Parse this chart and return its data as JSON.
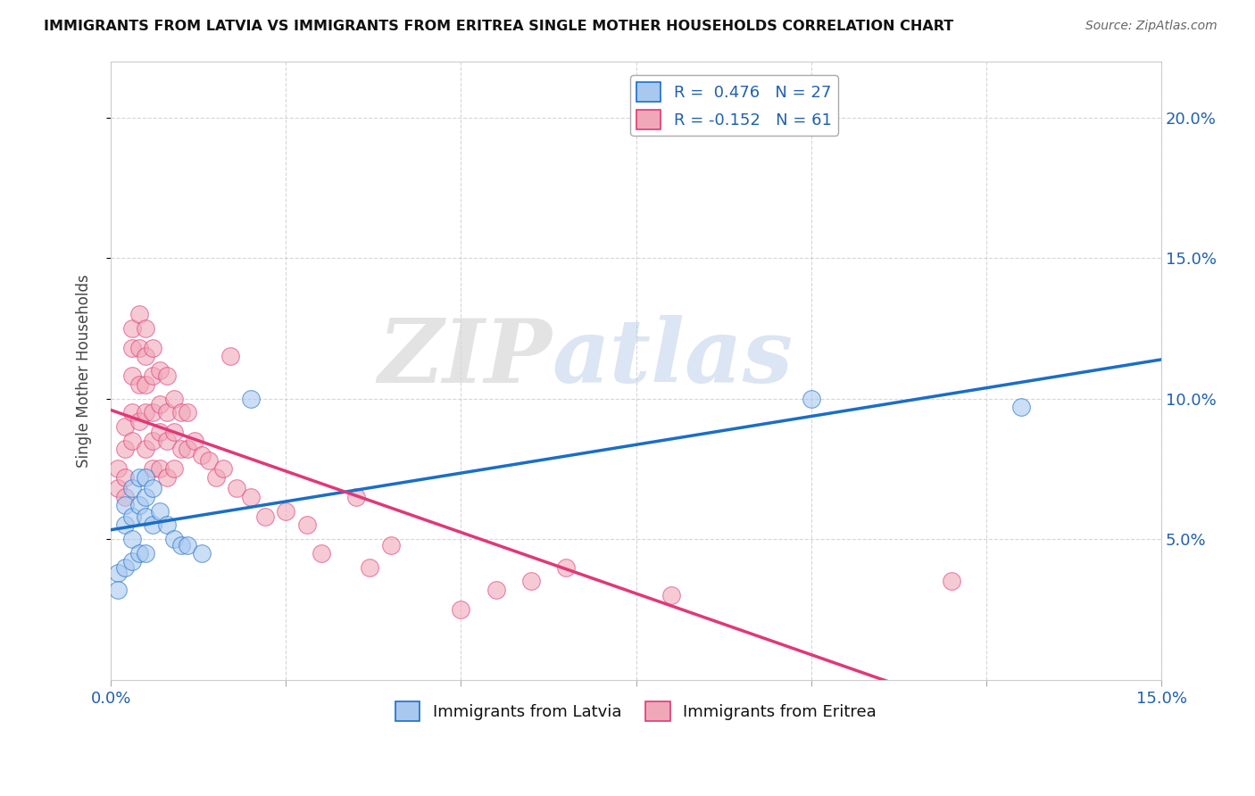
{
  "title": "IMMIGRANTS FROM LATVIA VS IMMIGRANTS FROM ERITREA SINGLE MOTHER HOUSEHOLDS CORRELATION CHART",
  "source": "Source: ZipAtlas.com",
  "ylabel": "Single Mother Households",
  "xlim": [
    0.0,
    0.15
  ],
  "ylim": [
    0.0,
    0.22
  ],
  "xticks": [
    0.0,
    0.025,
    0.05,
    0.075,
    0.1,
    0.125,
    0.15
  ],
  "yticks": [
    0.05,
    0.1,
    0.15,
    0.2
  ],
  "color_latvia": "#a8c8f0",
  "color_eritrea": "#f0a8b8",
  "trendline_latvia_color": "#1a6ec8",
  "trendline_eritrea_color": "#e03878",
  "watermark_zip": "ZIP",
  "watermark_atlas": "atlas",
  "legend_label_latvia": "R =  0.476   N = 27",
  "legend_label_eritrea": "R = -0.152   N = 61",
  "bottom_legend_latvia": "Immigrants from Latvia",
  "bottom_legend_eritrea": "Immigrants from Eritrea",
  "latvia_x": [
    0.001,
    0.001,
    0.002,
    0.002,
    0.002,
    0.003,
    0.003,
    0.003,
    0.003,
    0.004,
    0.004,
    0.004,
    0.005,
    0.005,
    0.005,
    0.005,
    0.006,
    0.006,
    0.007,
    0.008,
    0.009,
    0.01,
    0.011,
    0.013,
    0.02,
    0.1,
    0.13
  ],
  "latvia_y": [
    0.038,
    0.032,
    0.062,
    0.055,
    0.04,
    0.068,
    0.058,
    0.05,
    0.042,
    0.072,
    0.062,
    0.045,
    0.072,
    0.065,
    0.058,
    0.045,
    0.068,
    0.055,
    0.06,
    0.055,
    0.05,
    0.048,
    0.048,
    0.045,
    0.1,
    0.1,
    0.097
  ],
  "eritrea_x": [
    0.001,
    0.001,
    0.002,
    0.002,
    0.002,
    0.002,
    0.003,
    0.003,
    0.003,
    0.003,
    0.003,
    0.004,
    0.004,
    0.004,
    0.004,
    0.005,
    0.005,
    0.005,
    0.005,
    0.005,
    0.006,
    0.006,
    0.006,
    0.006,
    0.006,
    0.007,
    0.007,
    0.007,
    0.007,
    0.008,
    0.008,
    0.008,
    0.008,
    0.009,
    0.009,
    0.009,
    0.01,
    0.01,
    0.011,
    0.011,
    0.012,
    0.013,
    0.014,
    0.015,
    0.016,
    0.017,
    0.018,
    0.02,
    0.022,
    0.025,
    0.028,
    0.03,
    0.035,
    0.037,
    0.04,
    0.05,
    0.055,
    0.06,
    0.065,
    0.08,
    0.12
  ],
  "eritrea_y": [
    0.075,
    0.068,
    0.09,
    0.082,
    0.072,
    0.065,
    0.125,
    0.118,
    0.108,
    0.095,
    0.085,
    0.13,
    0.118,
    0.105,
    0.092,
    0.125,
    0.115,
    0.105,
    0.095,
    0.082,
    0.118,
    0.108,
    0.095,
    0.085,
    0.075,
    0.11,
    0.098,
    0.088,
    0.075,
    0.108,
    0.095,
    0.085,
    0.072,
    0.1,
    0.088,
    0.075,
    0.095,
    0.082,
    0.095,
    0.082,
    0.085,
    0.08,
    0.078,
    0.072,
    0.075,
    0.115,
    0.068,
    0.065,
    0.058,
    0.06,
    0.055,
    0.045,
    0.065,
    0.04,
    0.048,
    0.025,
    0.032,
    0.035,
    0.04,
    0.03,
    0.035
  ]
}
